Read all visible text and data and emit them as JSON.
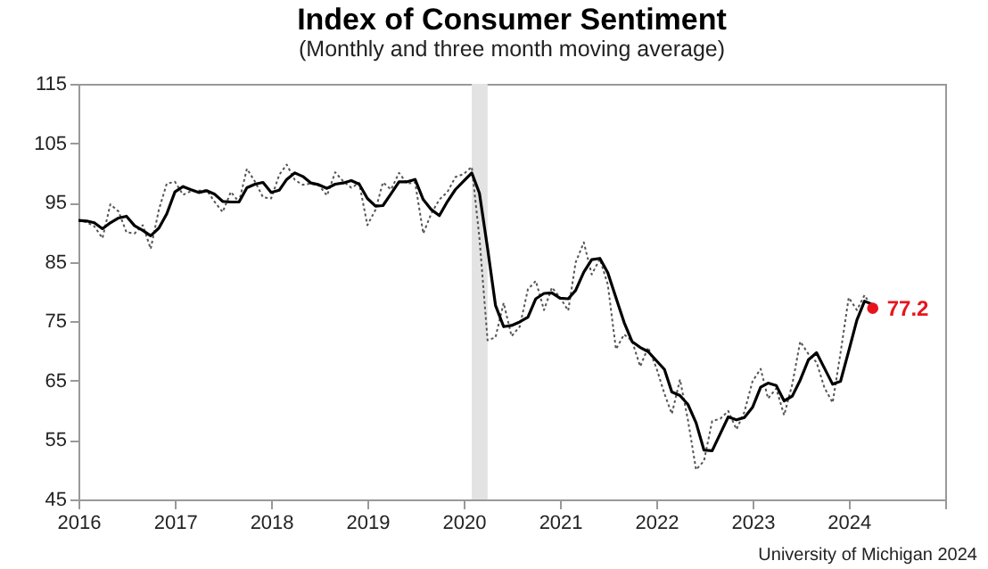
{
  "chart_data": {
    "type": "line",
    "title": "Index of Consumer Sentiment",
    "subtitle": "(Monthly and three month moving average)",
    "x": [
      "2016-01",
      "2016-02",
      "2016-03",
      "2016-04",
      "2016-05",
      "2016-06",
      "2016-07",
      "2016-08",
      "2016-09",
      "2016-10",
      "2016-11",
      "2016-12",
      "2017-01",
      "2017-02",
      "2017-03",
      "2017-04",
      "2017-05",
      "2017-06",
      "2017-07",
      "2017-08",
      "2017-09",
      "2017-10",
      "2017-11",
      "2017-12",
      "2018-01",
      "2018-02",
      "2018-03",
      "2018-04",
      "2018-05",
      "2018-06",
      "2018-07",
      "2018-08",
      "2018-09",
      "2018-10",
      "2018-11",
      "2018-12",
      "2019-01",
      "2019-02",
      "2019-03",
      "2019-04",
      "2019-05",
      "2019-06",
      "2019-07",
      "2019-08",
      "2019-09",
      "2019-10",
      "2019-11",
      "2019-12",
      "2020-01",
      "2020-02",
      "2020-03",
      "2020-04",
      "2020-05",
      "2020-06",
      "2020-07",
      "2020-08",
      "2020-09",
      "2020-10",
      "2020-11",
      "2020-12",
      "2021-01",
      "2021-02",
      "2021-03",
      "2021-04",
      "2021-05",
      "2021-06",
      "2021-07",
      "2021-08",
      "2021-09",
      "2021-10",
      "2021-11",
      "2021-12",
      "2022-01",
      "2022-02",
      "2022-03",
      "2022-04",
      "2022-05",
      "2022-06",
      "2022-07",
      "2022-08",
      "2022-09",
      "2022-10",
      "2022-11",
      "2022-12",
      "2023-01",
      "2023-02",
      "2023-03",
      "2023-04",
      "2023-05",
      "2023-06",
      "2023-07",
      "2023-08",
      "2023-09",
      "2023-10",
      "2023-11",
      "2023-12",
      "2024-01",
      "2024-02",
      "2024-03",
      "2024-04"
    ],
    "series": [
      {
        "color": "#555555",
        "line_style": "dotted",
        "values": [
          92.0,
          91.7,
          91.0,
          89.0,
          94.7,
          93.5,
          90.0,
          89.8,
          91.2,
          87.2,
          93.8,
          98.2,
          98.5,
          96.3,
          96.9,
          97.0,
          97.1,
          95.1,
          93.4,
          96.8,
          95.1,
          100.7,
          98.5,
          95.9,
          95.7,
          99.7,
          101.4,
          98.8,
          98.0,
          98.2,
          97.9,
          96.2,
          100.1,
          98.6,
          97.5,
          98.3,
          91.2,
          93.8,
          98.4,
          97.2,
          100.0,
          98.2,
          98.4,
          89.8,
          93.2,
          95.5,
          96.8,
          99.3,
          99.8,
          101.0,
          89.1,
          71.8,
          72.3,
          78.1,
          72.5,
          74.1,
          80.4,
          81.8,
          76.9,
          80.7,
          79.0,
          76.8,
          84.9,
          88.3,
          82.9,
          85.5,
          81.2,
          70.3,
          72.8,
          71.7,
          67.4,
          70.6,
          67.2,
          62.8,
          59.4,
          65.2,
          58.4,
          50.0,
          51.5,
          58.2,
          58.6,
          59.9,
          56.8,
          59.7,
          64.9,
          67.0,
          62.0,
          63.7,
          59.2,
          64.4,
          71.6,
          69.5,
          68.1,
          63.8,
          61.3,
          69.7,
          79.0,
          76.9,
          79.4,
          77.2
        ]
      },
      {
        "color": "#000000",
        "line_style": "solid",
        "values": [
          92.0,
          91.9,
          91.6,
          90.6,
          91.6,
          92.4,
          92.7,
          91.1,
          90.3,
          89.4,
          90.7,
          93.1,
          96.8,
          97.7,
          97.2,
          96.7,
          97.0,
          96.4,
          95.2,
          95.1,
          95.1,
          97.5,
          98.1,
          98.4,
          96.7,
          97.1,
          98.9,
          100.0,
          99.4,
          98.3,
          98.0,
          97.4,
          98.1,
          98.3,
          98.7,
          98.1,
          95.7,
          94.4,
          94.5,
          96.5,
          98.5,
          98.5,
          98.9,
          95.5,
          93.8,
          92.8,
          95.2,
          97.2,
          98.6,
          100.0,
          96.6,
          87.3,
          77.7,
          74.1,
          74.3,
          74.9,
          75.7,
          78.8,
          79.7,
          79.8,
          78.9,
          78.8,
          80.2,
          83.3,
          85.4,
          85.6,
          83.2,
          79.0,
          74.8,
          71.6,
          70.6,
          69.9,
          68.4,
          66.9,
          63.1,
          62.5,
          61.0,
          57.9,
          53.3,
          53.2,
          56.1,
          58.9,
          58.4,
          58.8,
          60.5,
          63.9,
          64.6,
          64.2,
          61.6,
          62.4,
          65.1,
          68.5,
          69.7,
          67.1,
          64.4,
          64.9,
          70.0,
          75.2,
          78.4,
          77.8
        ]
      }
    ],
    "xlim": [
      "2016-01",
      "2025-01"
    ],
    "xticks": [
      {
        "value": "2016-01",
        "label": "2016"
      },
      {
        "value": "2017-01",
        "label": "2017"
      },
      {
        "value": "2018-01",
        "label": "2018"
      },
      {
        "value": "2019-01",
        "label": "2019"
      },
      {
        "value": "2020-01",
        "label": "2020"
      },
      {
        "value": "2021-01",
        "label": "2021"
      },
      {
        "value": "2022-01",
        "label": "2022"
      },
      {
        "value": "2023-01",
        "label": "2023"
      },
      {
        "value": "2024-01",
        "label": "2024"
      },
      {
        "value": "2025-01",
        "label": null
      }
    ],
    "ylim": [
      45,
      115
    ],
    "yticks": [
      45,
      55,
      65,
      75,
      85,
      95,
      105,
      115
    ],
    "grid": false,
    "bands": [
      {
        "axis": "x",
        "from": "2020-02",
        "to": "2020-04",
        "color": "#e3e3e3"
      }
    ],
    "annotations": [
      {
        "text": "77.2",
        "x": "2024-04",
        "y": 77.2
      },
      "University of Michigan 2024"
    ]
  }
}
